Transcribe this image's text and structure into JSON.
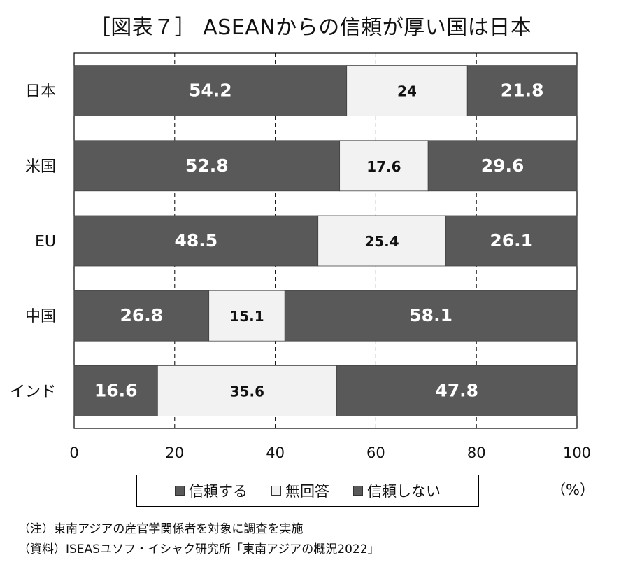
{
  "chart_data": {
    "type": "bar",
    "orientation": "horizontal",
    "stacked": true,
    "title": "［図表７］ ASEANからの信頼が厚い国は日本",
    "categories": [
      "日本",
      "米国",
      "EU",
      "中国",
      "インド"
    ],
    "series": [
      {
        "name": "信頼する",
        "values": [
          54.2,
          52.8,
          48.5,
          26.8,
          16.6
        ],
        "color": "#595959",
        "label_color": "#ffffff"
      },
      {
        "name": "無回答",
        "values": [
          24,
          17.6,
          25.4,
          15.1,
          35.6
        ],
        "color": "#f2f2f2",
        "label_color": "#111111"
      },
      {
        "name": "信頼しない",
        "values": [
          21.8,
          29.6,
          26.1,
          58.1,
          47.8
        ],
        "color": "#595959",
        "label_color": "#ffffff"
      }
    ],
    "xlim": [
      0,
      100
    ],
    "xticks": [
      0,
      20,
      40,
      60,
      80,
      100
    ],
    "unit": "（%）",
    "grid": "vertical dashed",
    "legend_position": "bottom"
  },
  "notes": [
    "（注）東南アジアの産官学関係者を対象に調査を実施",
    "（資料）ISEASユソフ・イシャク研究所「東南アジアの概況2022」"
  ]
}
